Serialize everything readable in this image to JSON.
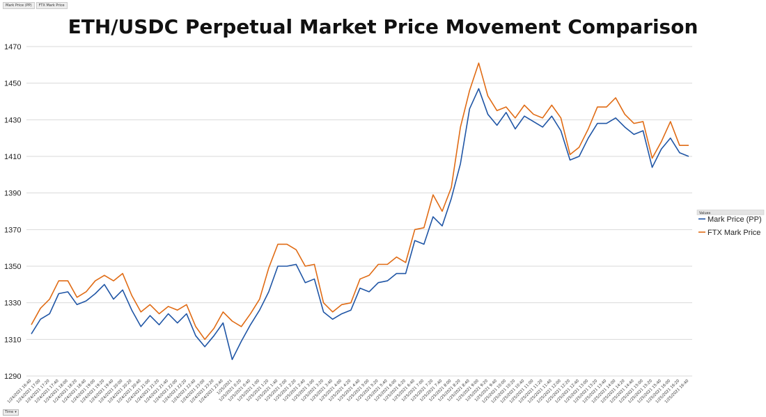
{
  "field_buttons": [
    "Mark Price (PP)",
    "FTX Mark Price"
  ],
  "filter_button": "Time",
  "legend": {
    "header": "Values"
  },
  "colors": {
    "mark_price": "#1f55a5",
    "ftx": "#e06b14",
    "grid": "#d9d9d9"
  },
  "chart_data": {
    "type": "line",
    "title": "ETH/USDC Perpetual Market Price Movement Comparison",
    "xlabel": "",
    "ylabel": "",
    "ylim": [
      1290,
      1470
    ],
    "yticks": [
      1290,
      1310,
      1330,
      1350,
      1370,
      1390,
      1410,
      1430,
      1450,
      1470
    ],
    "grid": true,
    "legend_position": "right",
    "categories": [
      "1/24/2021 16:40",
      "1/24/2021 17:00",
      "1/24/2021 17:20",
      "1/24/2021 17:40",
      "1/24/2021 18:00",
      "1/24/2021 18:20",
      "1/24/2021 18:40",
      "1/24/2021 19:00",
      "1/24/2021 19:20",
      "1/24/2021 19:40",
      "1/24/2021 20:00",
      "1/24/2021 20:20",
      "1/24/2021 20:40",
      "1/24/2021 21:00",
      "1/24/2021 21:20",
      "1/24/2021 21:40",
      "1/24/2021 22:00",
      "1/24/2021 22:20",
      "1/24/2021 22:40",
      "1/24/2021 23:00",
      "1/24/2021 23:20",
      "1/24/2021 23:40",
      "1/25/2021",
      "1/25/2021 0:20",
      "1/25/2021 0:40",
      "1/25/2021 1:00",
      "1/25/2021 1:20",
      "1/25/2021 1:40",
      "1/25/2021 2:00",
      "1/25/2021 2:20",
      "1/25/2021 2:40",
      "1/25/2021 3:00",
      "1/25/2021 3:20",
      "1/25/2021 3:40",
      "1/25/2021 4:00",
      "1/25/2021 4:20",
      "1/25/2021 4:40",
      "1/25/2021 5:00",
      "1/25/2021 5:20",
      "1/25/2021 5:40",
      "1/25/2021 6:00",
      "1/25/2021 6:20",
      "1/25/2021 6:40",
      "1/25/2021 7:00",
      "1/25/2021 7:20",
      "1/25/2021 7:40",
      "1/25/2021 8:00",
      "1/25/2021 8:20",
      "1/25/2021 8:40",
      "1/25/2021 9:00",
      "1/25/2021 9:20",
      "1/25/2021 9:40",
      "1/25/2021 10:00",
      "1/25/2021 10:20",
      "1/25/2021 10:40",
      "1/25/2021 11:00",
      "1/25/2021 11:20",
      "1/25/2021 11:40",
      "1/25/2021 12:00",
      "1/25/2021 12:20",
      "1/25/2021 12:40",
      "1/25/2021 13:00",
      "1/25/2021 13:20",
      "1/25/2021 13:40",
      "1/25/2021 14:00",
      "1/25/2021 14:20",
      "1/25/2021 14:40",
      "1/25/2021 15:00",
      "1/25/2021 15:20",
      "1/25/2021 15:40",
      "1/25/2021 16:00",
      "1/25/2021 16:20",
      "1/25/2021 16:40"
    ],
    "series": [
      {
        "name": "Mark Price (PP)",
        "values": [
          1313,
          1321,
          1324,
          1335,
          1336,
          1329,
          1331,
          1335,
          1340,
          1332,
          1337,
          1326,
          1317,
          1323,
          1318,
          1324,
          1319,
          1324,
          1312,
          1306,
          1312,
          1319,
          1299,
          1309,
          1318,
          1326,
          1336,
          1350,
          1350,
          1351,
          1341,
          1343,
          1325,
          1321,
          1324,
          1326,
          1338,
          1336,
          1341,
          1342,
          1346,
          1346,
          1364,
          1362,
          1377,
          1372,
          1387,
          1406,
          1436,
          1447,
          1433,
          1427,
          1434,
          1425,
          1432,
          1429,
          1426,
          1432,
          1424,
          1408,
          1410,
          1420,
          1428,
          1428,
          1431,
          1426,
          1422,
          1424,
          1404,
          1414,
          1420,
          1412,
          1410
        ]
      },
      {
        "name": "FTX Mark Price",
        "values": [
          1318,
          1327,
          1332,
          1342,
          1342,
          1333,
          1336,
          1342,
          1345,
          1342,
          1346,
          1334,
          1325,
          1329,
          1324,
          1328,
          1326,
          1329,
          1317,
          1310,
          1316,
          1325,
          1320,
          1317,
          1324,
          1332,
          1349,
          1362,
          1362,
          1359,
          1350,
          1351,
          1330,
          1325,
          1329,
          1330,
          1343,
          1345,
          1351,
          1351,
          1355,
          1352,
          1370,
          1371,
          1389,
          1380,
          1393,
          1426,
          1446,
          1461,
          1443,
          1435,
          1437,
          1431,
          1438,
          1433,
          1431,
          1438,
          1431,
          1411,
          1415,
          1425,
          1437,
          1437,
          1442,
          1433,
          1428,
          1429,
          1409,
          1418,
          1429,
          1416,
          1416
        ]
      }
    ]
  }
}
